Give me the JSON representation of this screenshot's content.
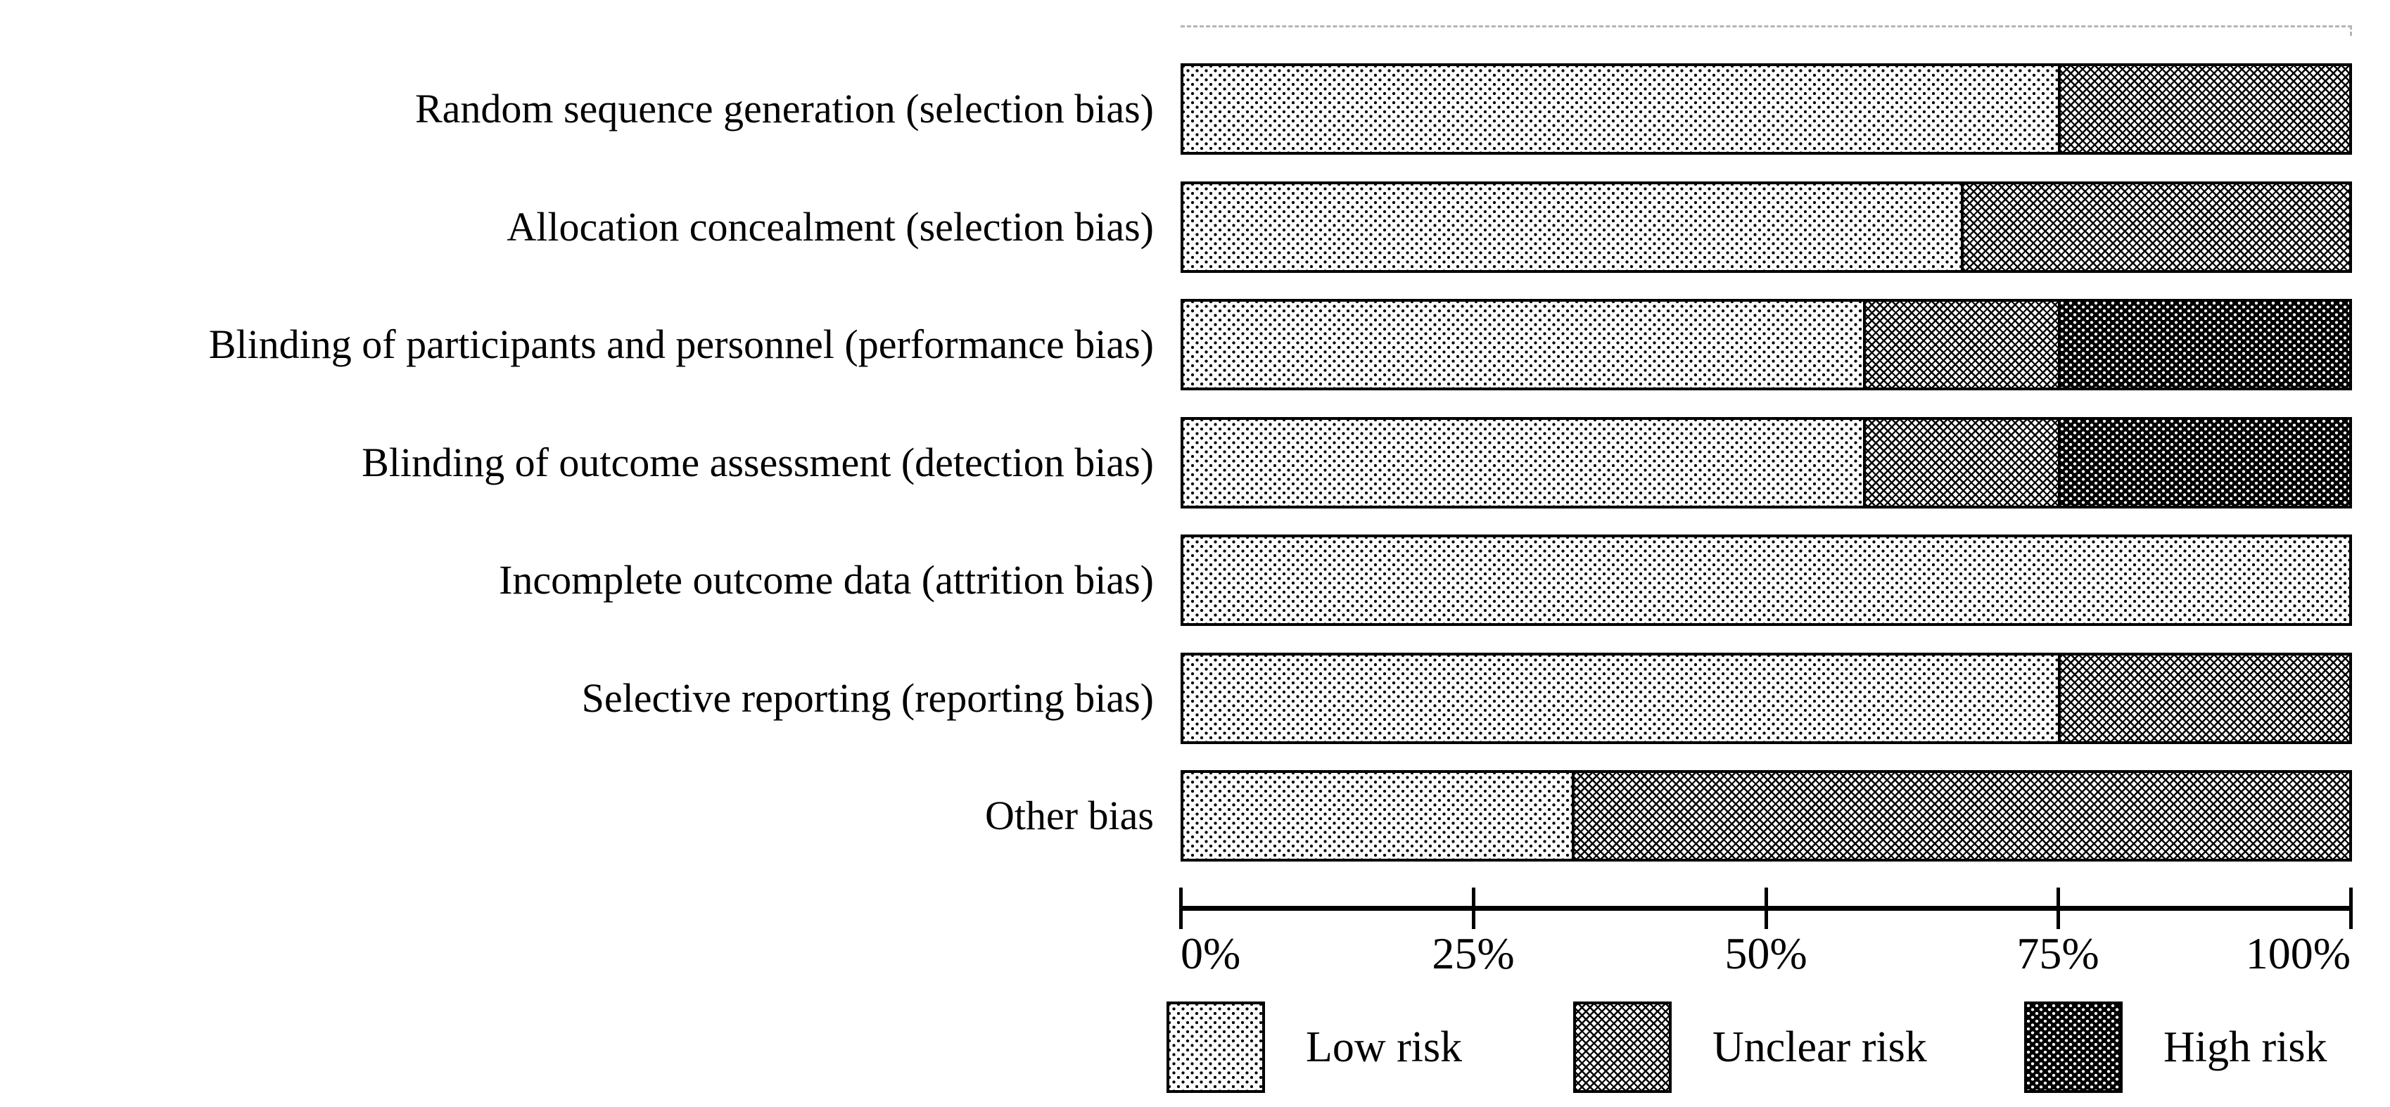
{
  "chart_data": {
    "type": "bar",
    "variant": "horizontal-stacked-percent",
    "title": "",
    "xlabel": "",
    "ylabel": "",
    "xlim": [
      0,
      100
    ],
    "grid": false,
    "categories": [
      "Random sequence generation (selection bias)",
      "Allocation concealment (selection bias)",
      "Blinding of participants and personnel (performance bias)",
      "Blinding of outcome assessment (detection bias)",
      "Incomplete outcome data (attrition bias)",
      "Selective reporting (reporting bias)",
      "Other bias"
    ],
    "series": [
      {
        "name": "Low risk",
        "pattern": "black-dots-on-white",
        "values": [
          75,
          66.7,
          58.3,
          58.3,
          100,
          75,
          33.3
        ]
      },
      {
        "name": "Unclear risk",
        "pattern": "diagonal-crosshatch",
        "values": [
          25,
          33.3,
          16.7,
          16.7,
          0,
          25,
          66.7
        ]
      },
      {
        "name": "High risk",
        "pattern": "white-dots-on-black",
        "values": [
          0,
          0,
          25,
          25,
          0,
          0,
          0
        ]
      }
    ],
    "x_ticks": [
      {
        "value": 0,
        "label": "0%"
      },
      {
        "value": 25,
        "label": "25%"
      },
      {
        "value": 50,
        "label": "50%"
      },
      {
        "value": 75,
        "label": "75%"
      },
      {
        "value": 100,
        "label": "100%"
      }
    ],
    "legend": {
      "position": "bottom",
      "entries": [
        {
          "label": "Low risk",
          "pattern": "black-dots-on-white"
        },
        {
          "label": "Unclear risk",
          "pattern": "diagonal-crosshatch"
        },
        {
          "label": "High risk",
          "pattern": "white-dots-on-black"
        }
      ]
    },
    "colors": {
      "foreground": "#000000",
      "background": "#ffffff",
      "frame_dashed_line": "#b5b5b5"
    }
  }
}
